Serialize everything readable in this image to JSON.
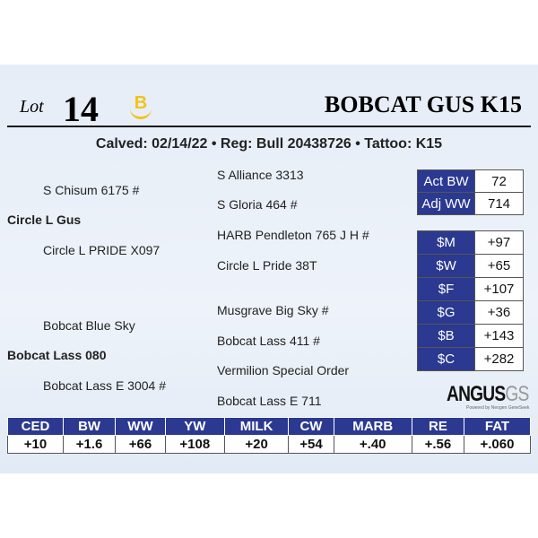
{
  "lot_label": "Lot",
  "lot_number": "14",
  "logo_letter": "B",
  "title": "BOBCAT GUS K15",
  "subtitle": "Calved: 02/14/22 • Reg: Bull 20438726 • Tattoo: K15",
  "pedigree": {
    "sss": "S Alliance 3313",
    "ss": "S Chisum 6175 #",
    "ssd": "S Gloria 464 #",
    "sire": "Circle L Gus",
    "sds": "HARB Pendleton 765 J H #",
    "sd": "Circle L PRIDE X097",
    "sdd": "Circle L Pride 38T",
    "dss": "Musgrave Big Sky #",
    "ds": "Bobcat Blue Sky",
    "dsd": "Bobcat Lass 411 #",
    "dam": "Bobcat Lass 080",
    "dds": "Vermilion Special Order",
    "dd": "Bobcat Lass E 3004 #",
    "ddd": "Bobcat Lass E 711"
  },
  "weights": [
    {
      "label": "Act BW",
      "value": "72"
    },
    {
      "label": "Adj WW",
      "value": "714"
    }
  ],
  "indexes": [
    {
      "label": "$M",
      "value": "+97"
    },
    {
      "label": "$W",
      "value": "+65"
    },
    {
      "label": "$F",
      "value": "+107"
    },
    {
      "label": "$G",
      "value": "+36"
    },
    {
      "label": "$B",
      "value": "+143"
    },
    {
      "label": "$C",
      "value": "+282"
    }
  ],
  "brand": {
    "name": "ANGUS",
    "suffix": "GS",
    "tagline": "Powered by Neogen GeneSeek"
  },
  "epds": {
    "headers": [
      "CED",
      "BW",
      "WW",
      "YW",
      "MILK",
      "CW",
      "MARB",
      "RE",
      "FAT"
    ],
    "values": [
      "+10",
      "+1.6",
      "+66",
      "+108",
      "+20",
      "+54",
      "+.40",
      "+.56",
      "+.060"
    ]
  },
  "colors": {
    "navy": "#2b3990",
    "logo": "#f0c419"
  }
}
